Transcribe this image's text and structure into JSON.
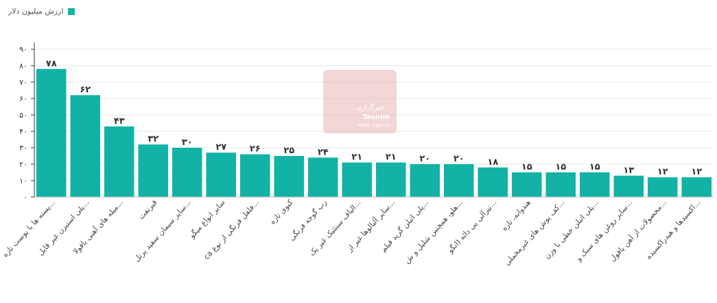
{
  "legend": {
    "label": "ارزش میلیون دلار",
    "color": "#12b3a6"
  },
  "watermark": {
    "line1": "خبرگزاری",
    "line2": "Tasnim",
    "line3": "News Agency"
  },
  "chart_data": {
    "type": "bar",
    "title": "",
    "xlabel": "",
    "ylabel": "",
    "ylim": [
      0,
      90
    ],
    "yticks": [
      0,
      10,
      20,
      30,
      40,
      50,
      60,
      70,
      80,
      90
    ],
    "ytick_labels": [
      "۰",
      "۱۰",
      "۲۰",
      "۳۰",
      "۴۰",
      "۵۰",
      "۶۰",
      "۷۰",
      "۸۰",
      "۹۰"
    ],
    "grid": true,
    "legend_position": "top-left",
    "bar_color": "#12b3a6",
    "categories": [
      "پسته ها با پوست تازه...",
      "پلی استیرن غیر قابل...",
      "میله های آهنی یافولا...",
      "قیرنفت",
      "سایر سیمان سفید پرتل...",
      "سایر انواع میگو",
      "ca فلفل فرنگی از نوع...",
      "کیوی تازه",
      "رب گوجه فرنگی",
      "الیاف سنتتیک غیر یک...",
      "سایر آلیالوها غیر از...",
      "پلی اتیلن گرید فیلم...",
      "هلو، همچنین شلیل و ش...",
      "تیرآلی پی دائه (انگو...",
      "هندوانه، تازه",
      "کف پوش های غیرمخملی...",
      "پلی اتیلن خطی با وزن...",
      "سایر روغن های سبک و...",
      "محصولات از آهن یافول...",
      "اکسیدها و هیدراکسیده..."
    ],
    "values": [
      78,
      62,
      43,
      32,
      30,
      27,
      26,
      25,
      24,
      21,
      21,
      20,
      20,
      18,
      15,
      15,
      15,
      13,
      12,
      12
    ],
    "value_labels": [
      "۷۸",
      "۶۲",
      "۴۳",
      "۳۲",
      "۳۰",
      "۲۷",
      "۲۶",
      "۲۵",
      "۲۴",
      "۲۱",
      "۲۱",
      "۲۰",
      "۲۰",
      "۱۸",
      "۱۵",
      "۱۵",
      "۱۵",
      "۱۳",
      "۱۲",
      "۱۲"
    ]
  }
}
